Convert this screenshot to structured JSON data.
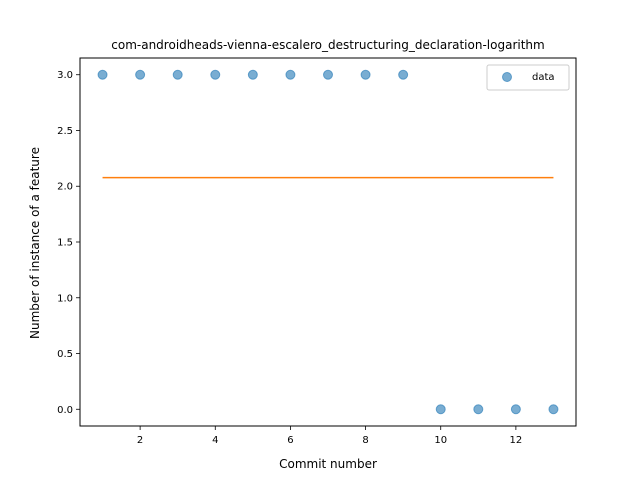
{
  "chart_data": {
    "type": "scatter",
    "title": "com-androidheads-vienna-escalero_destructuring_declaration-logarithm",
    "xlabel": "Commit number",
    "ylabel": "Number of instance of a feature",
    "xlim": [
      0.4,
      13.6
    ],
    "ylim": [
      -0.15,
      3.15
    ],
    "xticks": [
      2,
      4,
      6,
      8,
      10,
      12
    ],
    "yticks": [
      0.0,
      0.5,
      1.0,
      1.5,
      2.0,
      2.5,
      3.0
    ],
    "grid": false,
    "legend": {
      "position": "top-right",
      "entries": [
        "data"
      ]
    },
    "series": [
      {
        "name": "data",
        "kind": "scatter",
        "color": "#1f77b4",
        "x": [
          1,
          2,
          3,
          4,
          5,
          6,
          7,
          8,
          9,
          10,
          11,
          12,
          13
        ],
        "y": [
          3,
          3,
          3,
          3,
          3,
          3,
          3,
          3,
          3,
          0,
          0,
          0,
          0
        ]
      },
      {
        "kind": "line",
        "color": "#ff7f0e",
        "x": [
          1,
          13
        ],
        "y": [
          2.0769,
          2.0769
        ]
      }
    ]
  }
}
